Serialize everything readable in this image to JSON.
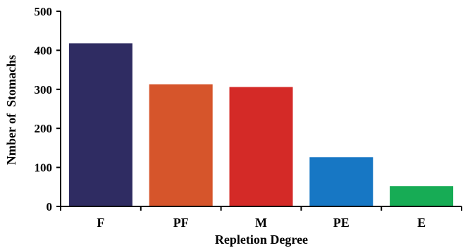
{
  "chart_data": {
    "type": "bar",
    "categories": [
      "F",
      "PF",
      "M",
      "PE",
      "E"
    ],
    "values": [
      418,
      313,
      306,
      126,
      52
    ],
    "colors": [
      "#2f2c62",
      "#d6552b",
      "#d42a27",
      "#1777c4",
      "#17ac55"
    ],
    "xlabel": "Repletion Degree",
    "ylabel": "Nmber of  Stomachs",
    "ylim": [
      0,
      500
    ],
    "yticks": [
      0,
      100,
      200,
      300,
      400,
      500
    ],
    "ytick_labels": [
      "0",
      "100",
      "200",
      "300",
      "400",
      "500"
    ],
    "grid": false,
    "legend": "none"
  }
}
